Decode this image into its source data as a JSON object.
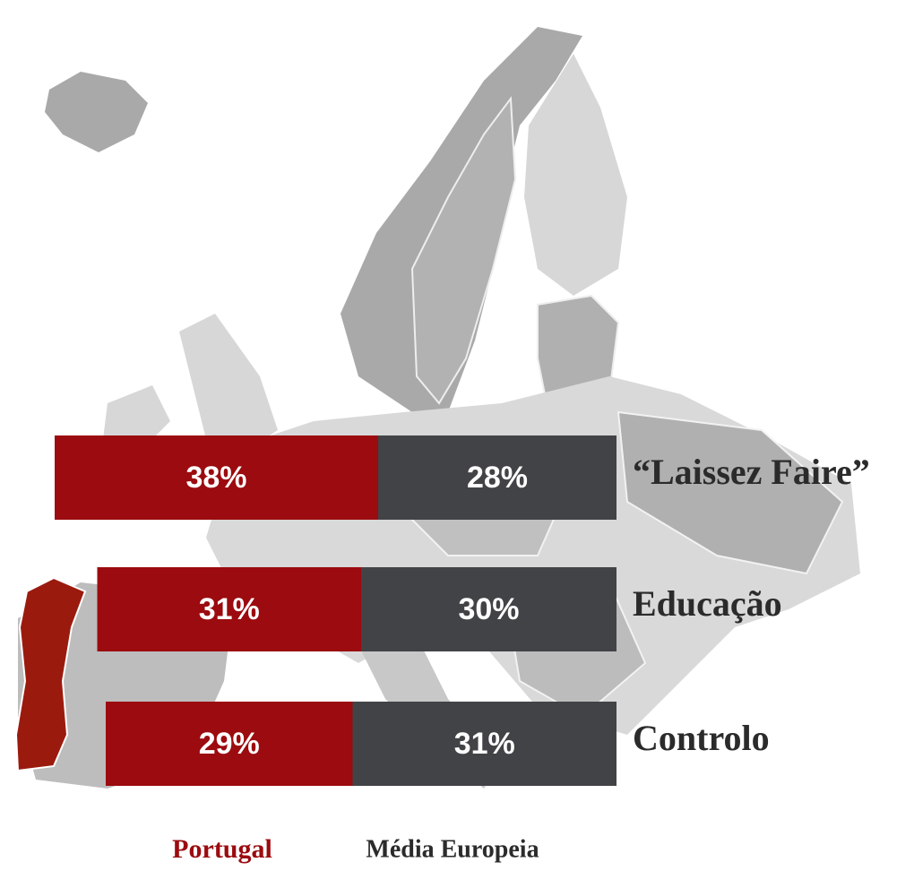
{
  "chart_data": {
    "type": "bar",
    "orientation": "horizontal",
    "stacked": true,
    "categories": [
      "“Laissez Faire”",
      "Educação",
      "Controlo"
    ],
    "series": [
      {
        "name": "Portugal",
        "color": "#9b0b0f",
        "values": [
          38,
          31,
          29
        ],
        "value_labels": [
          "38%",
          "31%",
          "29%"
        ]
      },
      {
        "name": "Média Europeia",
        "color": "#424346",
        "values": [
          28,
          30,
          31
        ],
        "value_labels": [
          "28%",
          "30%",
          "31%"
        ]
      }
    ]
  }
}
